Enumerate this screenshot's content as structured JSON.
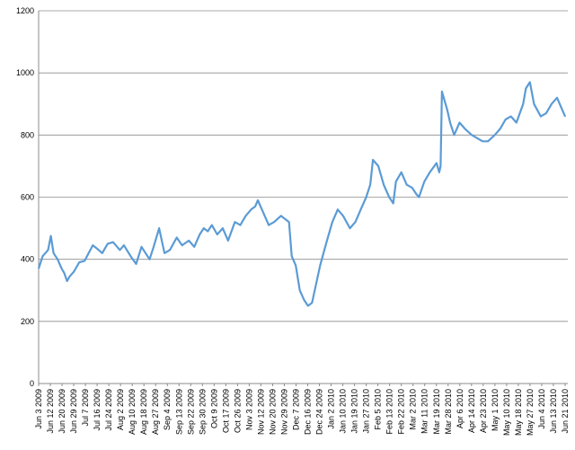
{
  "chart_data": {
    "type": "line",
    "title": "",
    "xlabel": "",
    "ylabel": "",
    "ylim": [
      0,
      1200
    ],
    "y_ticks": [
      0,
      200,
      400,
      600,
      800,
      1000,
      1200
    ],
    "grid": "horizontal",
    "legend": "none",
    "series_color": "#5b9bd5",
    "x_tick_labels": [
      "Jun 3 2009",
      "Jun 12 2009",
      "Jun 20 2009",
      "Jun 29 2009",
      "Jul 7 2009",
      "Jul 16 2009",
      "Jul 24 2009",
      "Aug 2 2009",
      "Aug 10 2009",
      "Aug 18 2009",
      "Aug 27 2009",
      "Sep 4 2009",
      "Sep 13 2009",
      "Sep 22 2009",
      "Sep 30 2009",
      "Oct 9 2009",
      "Oct 17 2009",
      "Oct 26 2009",
      "Nov 3 2009",
      "Nov 12 2009",
      "Nov 20 2009",
      "Nov 29 2009",
      "Dec 7 2009",
      "Dec 16 2009",
      "Dec 24 2009",
      "Jan 2 2010",
      "Jan 10 2010",
      "Jan 19 2010",
      "Jan 27 2010",
      "Feb 5 2010",
      "Feb 13 2010",
      "Feb 22 2010",
      "Mar 2 2010",
      "Mar 11 2010",
      "Mar 19 2010",
      "Mar 28 2010",
      "Apr 6 2010",
      "Apr 14 2010",
      "Apr 23 2010",
      "May 1 2010",
      "May 10 2010",
      "May 18 2010",
      "May 27 2010",
      "Jun 4 2010",
      "Jun 13 2010",
      "Jun 21 2010"
    ],
    "x": [
      "2009-06-03",
      "2009-06-06",
      "2009-06-10",
      "2009-06-12",
      "2009-06-14",
      "2009-06-17",
      "2009-06-20",
      "2009-06-22",
      "2009-06-24",
      "2009-06-26",
      "2009-06-29",
      "2009-07-03",
      "2009-07-07",
      "2009-07-10",
      "2009-07-13",
      "2009-07-16",
      "2009-07-20",
      "2009-07-24",
      "2009-07-28",
      "2009-08-02",
      "2009-08-05",
      "2009-08-10",
      "2009-08-14",
      "2009-08-18",
      "2009-08-21",
      "2009-08-24",
      "2009-08-27",
      "2009-08-31",
      "2009-09-04",
      "2009-09-08",
      "2009-09-13",
      "2009-09-17",
      "2009-09-22",
      "2009-09-26",
      "2009-09-30",
      "2009-10-03",
      "2009-10-06",
      "2009-10-09",
      "2009-10-13",
      "2009-10-17",
      "2009-10-21",
      "2009-10-26",
      "2009-10-30",
      "2009-11-03",
      "2009-11-07",
      "2009-11-10",
      "2009-11-12",
      "2009-11-16",
      "2009-11-20",
      "2009-11-24",
      "2009-11-29",
      "2009-12-02",
      "2009-12-05",
      "2009-12-07",
      "2009-12-10",
      "2009-12-13",
      "2009-12-16",
      "2009-12-19",
      "2009-12-22",
      "2009-12-24",
      "2009-12-28",
      "2010-01-02",
      "2010-01-06",
      "2010-01-10",
      "2010-01-14",
      "2010-01-19",
      "2010-01-23",
      "2010-01-27",
      "2010-01-31",
      "2010-02-03",
      "2010-02-05",
      "2010-02-09",
      "2010-02-13",
      "2010-02-17",
      "2010-02-20",
      "2010-02-22",
      "2010-02-26",
      "2010-03-02",
      "2010-03-06",
      "2010-03-09",
      "2010-03-11",
      "2010-03-15",
      "2010-03-19",
      "2010-03-24",
      "2010-03-26",
      "2010-03-27",
      "2010-03-28",
      "2010-04-01",
      "2010-04-03",
      "2010-04-06",
      "2010-04-10",
      "2010-04-14",
      "2010-04-19",
      "2010-04-23",
      "2010-04-27",
      "2010-05-01",
      "2010-05-06",
      "2010-05-10",
      "2010-05-14",
      "2010-05-18",
      "2010-05-22",
      "2010-05-27",
      "2010-05-29",
      "2010-06-01",
      "2010-06-04",
      "2010-06-09",
      "2010-06-13",
      "2010-06-17",
      "2010-06-21",
      "2010-06-25",
      "2010-06-27"
    ],
    "series": [
      {
        "values": [
          370,
          410,
          430,
          475,
          420,
          400,
          370,
          355,
          330,
          345,
          360,
          390,
          395,
          420,
          445,
          435,
          420,
          450,
          455,
          430,
          445,
          410,
          385,
          440,
          420,
          400,
          440,
          500,
          420,
          430,
          470,
          445,
          460,
          440,
          480,
          500,
          490,
          510,
          480,
          500,
          460,
          520,
          510,
          540,
          560,
          570,
          590,
          550,
          510,
          520,
          540,
          530,
          520,
          410,
          380,
          300,
          270,
          250,
          260,
          300,
          380,
          460,
          520,
          560,
          540,
          500,
          520,
          560,
          600,
          640,
          720,
          700,
          640,
          600,
          580,
          650,
          680,
          640,
          630,
          610,
          600,
          650,
          680,
          710,
          680,
          700,
          940,
          880,
          840,
          800,
          840,
          820,
          800,
          790,
          780,
          780,
          800,
          820,
          850,
          860,
          840,
          900,
          950,
          970,
          900,
          860,
          870,
          900,
          920,
          880,
          860
        ]
      }
    ]
  }
}
